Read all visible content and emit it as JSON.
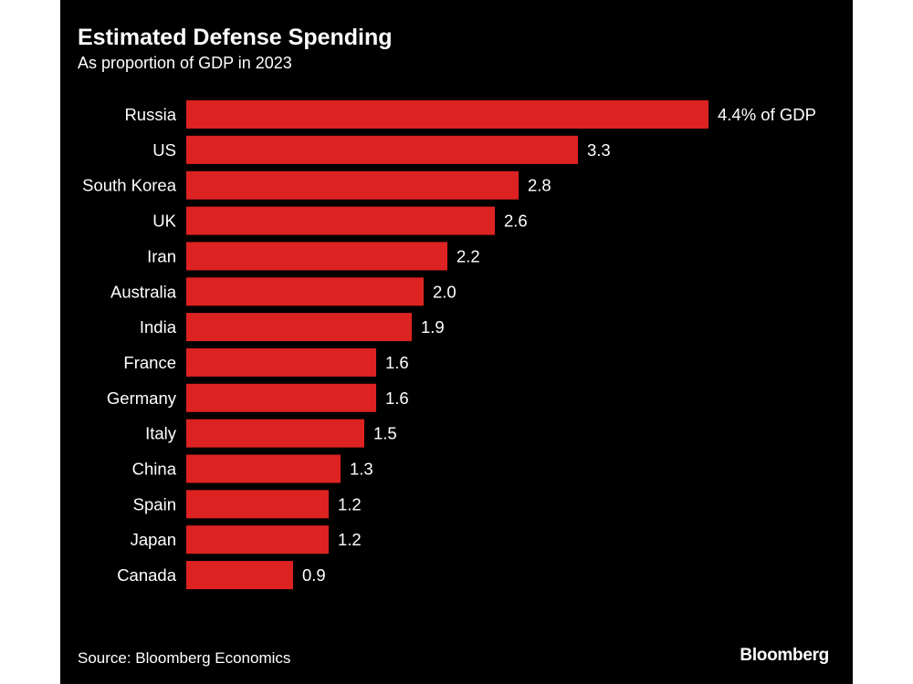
{
  "colors": {
    "background": "#000000",
    "bar": "#dd2222",
    "text": "#ffffff"
  },
  "chart_data": {
    "type": "bar",
    "orientation": "horizontal",
    "title": "Estimated Defense Spending",
    "subtitle": "As proportion of GDP in 2023",
    "categories": [
      "Russia",
      "US",
      "South Korea",
      "UK",
      "Iran",
      "Australia",
      "India",
      "France",
      "Germany",
      "Italy",
      "China",
      "Spain",
      "Japan",
      "Canada"
    ],
    "values": [
      4.4,
      3.3,
      2.8,
      2.6,
      2.2,
      2.0,
      1.9,
      1.6,
      1.6,
      1.5,
      1.3,
      1.2,
      1.2,
      0.9
    ],
    "value_labels": [
      "4.4% of GDP",
      "3.3",
      "2.8",
      "2.6",
      "2.2",
      "2.0",
      "1.9",
      "1.6",
      "1.6",
      "1.5",
      "1.3",
      "1.2",
      "1.2",
      "0.9"
    ],
    "xlim": [
      0,
      4.4
    ],
    "grid": false,
    "legend": "none",
    "source": "Source: Bloomberg Economics",
    "brand": "Bloomberg"
  }
}
